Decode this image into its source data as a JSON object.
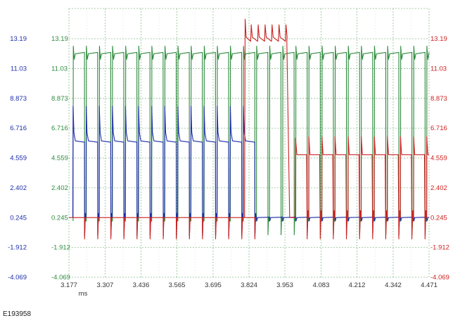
{
  "caption": "E193958",
  "chart_data": {
    "type": "line",
    "title": "",
    "xlabel": "ms",
    "x_ticks": [
      "3.177",
      "3.307",
      "3.436",
      "3.565",
      "3.695",
      "3.824",
      "3.953",
      "4.083",
      "4.212",
      "4.342",
      "4.471"
    ],
    "xlim": [
      3.177,
      4.471
    ],
    "y_ticks": [
      "13.19",
      "11.03",
      "8.873",
      "6.716",
      "4.559",
      "2.402",
      "0.245",
      "-1.912",
      "-4.069"
    ],
    "ylim": [
      -4.069,
      15.0
    ],
    "grid": true,
    "axes": {
      "left_outer": {
        "color": "#1f2fa8"
      },
      "left_inner": {
        "color": "#2e8b3e"
      },
      "right": {
        "color": "#cc2222"
      }
    },
    "series": [
      {
        "color": "#2e8b3e",
        "pulse_start": 3.192,
        "pulse_period": 0.04706,
        "pulse_count": 28,
        "duty": 0.87,
        "high": 12.1,
        "low": 0.0,
        "overshoot": 0.55,
        "undershoot": -1.0
      },
      {
        "color": "#1f2fa8",
        "pulse_start": 3.192,
        "pulse_period": 0.04706,
        "pulse_count": 28,
        "active_until": 3.81,
        "spike": 8.3,
        "plateau": 5.8,
        "after": 0.25,
        "dip": -1.1
      },
      {
        "color": "#cc2222",
        "baseline": 0.25,
        "plateau_start": 3.81,
        "plateau_end": 3.96,
        "plateau_level": 13.3,
        "plateau_spike": 14.6,
        "dip_from": 3.79,
        "tail_level": 4.8,
        "tail_spike": 6.1,
        "pulse_start": 3.192,
        "pulse_period": 0.04706,
        "pulse_count": 28,
        "dip": -1.3
      }
    ]
  }
}
